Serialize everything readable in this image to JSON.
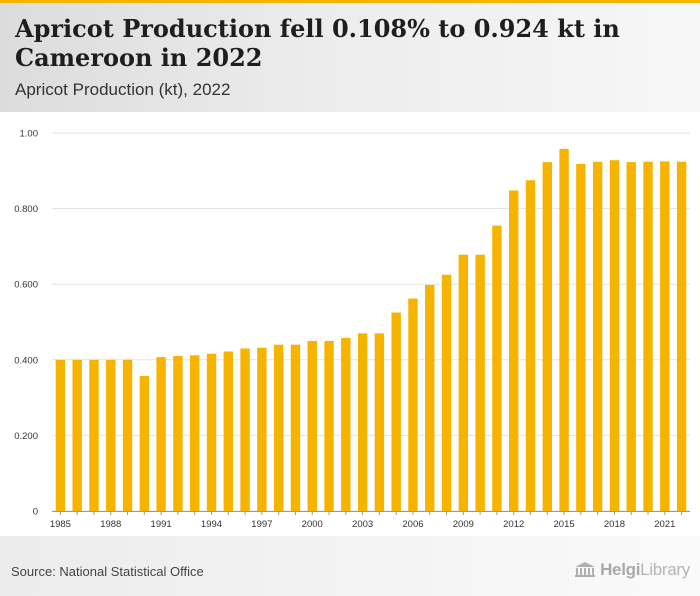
{
  "header": {
    "title": "Apricot Production fell 0.108% to 0.924 kt in Cameroon in 2022",
    "subtitle": "Apricot Production (kt), 2022"
  },
  "footer": {
    "source": "Source: National Statistical Office",
    "logo_text_bold": "Helgi",
    "logo_text_light": "Library"
  },
  "colors": {
    "bar": "#f6b400",
    "accent": "#f6b400",
    "grid": "#e3e3e3"
  },
  "chart_data": {
    "type": "bar",
    "title": "Apricot Production fell 0.108% to 0.924 kt in Cameroon in 2022",
    "subtitle": "Apricot Production (kt), 2022",
    "xlabel": "",
    "ylabel": "",
    "categories": [
      1985,
      1986,
      1987,
      1988,
      1989,
      1990,
      1991,
      1992,
      1993,
      1994,
      1995,
      1996,
      1997,
      1998,
      1999,
      2000,
      2001,
      2002,
      2003,
      2004,
      2005,
      2006,
      2007,
      2008,
      2009,
      2010,
      2011,
      2012,
      2013,
      2014,
      2015,
      2016,
      2017,
      2018,
      2019,
      2020,
      2021,
      2022
    ],
    "values": [
      0.4,
      0.4,
      0.4,
      0.4,
      0.4,
      0.357,
      0.407,
      0.41,
      0.412,
      0.416,
      0.422,
      0.43,
      0.432,
      0.44,
      0.44,
      0.45,
      0.45,
      0.458,
      0.47,
      0.47,
      0.525,
      0.562,
      0.598,
      0.625,
      0.678,
      0.678,
      0.755,
      0.848,
      0.875,
      0.923,
      0.958,
      0.918,
      0.924,
      0.928,
      0.923,
      0.924,
      0.925,
      0.924
    ],
    "ylim": [
      0,
      1.0
    ],
    "yticks": [
      {
        "value": 0,
        "label": "0"
      },
      {
        "value": 0.2,
        "label": "0.200"
      },
      {
        "value": 0.4,
        "label": "0.400"
      },
      {
        "value": 0.6,
        "label": "0.600"
      },
      {
        "value": 0.8,
        "label": "0.800"
      },
      {
        "value": 1.0,
        "label": "1.00"
      }
    ],
    "xtick_labels": [
      "1985",
      "1988",
      "1991",
      "1994",
      "1997",
      "2000",
      "2003",
      "2006",
      "2009",
      "2012",
      "2015",
      "2018",
      "2021"
    ],
    "grid": true,
    "legend": "none"
  }
}
